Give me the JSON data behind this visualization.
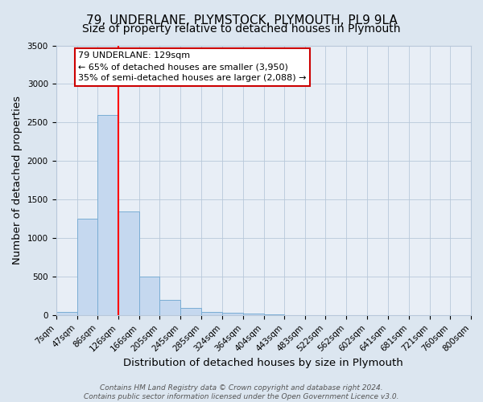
{
  "title": "79, UNDERLANE, PLYMSTOCK, PLYMOUTH, PL9 9LA",
  "subtitle": "Size of property relative to detached houses in Plymouth",
  "xlabel": "Distribution of detached houses by size in Plymouth",
  "ylabel": "Number of detached properties",
  "bin_edges": [
    7,
    47,
    86,
    126,
    166,
    205,
    245,
    285,
    324,
    364,
    404,
    443,
    483,
    522,
    562,
    602,
    641,
    681,
    721,
    760,
    800
  ],
  "bar_heights": [
    50,
    1250,
    2600,
    1350,
    500,
    200,
    100,
    50,
    30,
    20,
    10,
    5,
    0,
    0,
    0,
    0,
    0,
    0,
    0,
    0
  ],
  "bar_color": "#c5d8ef",
  "bar_edge_color": "#7aadd4",
  "red_line_x": 126,
  "ylim": [
    0,
    3500
  ],
  "yticks": [
    0,
    500,
    1000,
    1500,
    2000,
    2500,
    3000,
    3500
  ],
  "annotation_title": "79 UNDERLANE: 129sqm",
  "annotation_line1": "← 65% of detached houses are smaller (3,950)",
  "annotation_line2": "35% of semi-detached houses are larger (2,088) →",
  "annotation_box_facecolor": "#ffffff",
  "annotation_box_edgecolor": "#cc0000",
  "footer_line1": "Contains HM Land Registry data © Crown copyright and database right 2024.",
  "footer_line2": "Contains public sector information licensed under the Open Government Licence v3.0.",
  "fig_facecolor": "#dce6f0",
  "plot_facecolor": "#e8eef6",
  "grid_color": "#b8c8da",
  "title_fontsize": 11,
  "subtitle_fontsize": 10,
  "axis_label_fontsize": 9.5,
  "tick_fontsize": 7.5,
  "footer_fontsize": 6.5,
  "ann_fontsize": 8
}
